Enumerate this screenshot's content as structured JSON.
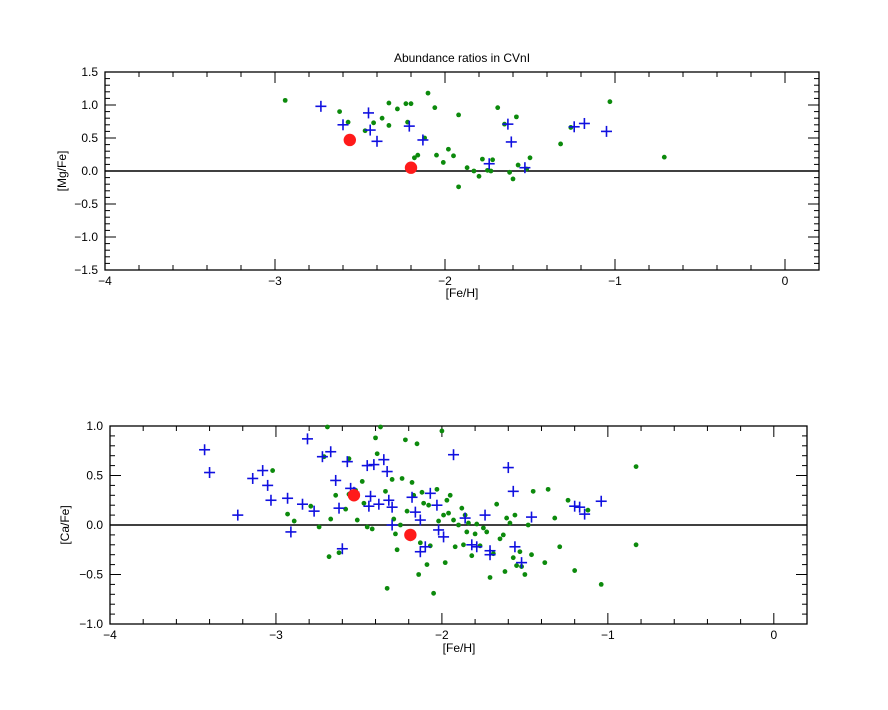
{
  "figure": {
    "title": "Abundance ratios in CVnI"
  },
  "colors": {
    "red": "#ff1a1a",
    "blue": "#1010e0",
    "green": "#0c8a0c",
    "axis": "#000000"
  },
  "chart_data": [
    {
      "type": "scatter",
      "title": "Abundance ratios in CVnI",
      "xlabel": "[Fe/H]",
      "ylabel": "[Mg/Fe]",
      "xlim": [
        -4,
        0.2
      ],
      "ylim": [
        -1.5,
        1.5
      ],
      "xticks": [
        -4,
        -3,
        -2,
        -1,
        0
      ],
      "xtick_labels": [
        "−4",
        "−3",
        "−2",
        "−1",
        "0"
      ],
      "yticks": [
        -1.5,
        -1.0,
        -0.5,
        0.0,
        0.5,
        1.0,
        1.5
      ],
      "ytick_labels": [
        "−1.5",
        "−1.0",
        "−0.5",
        "0.0",
        "0.5",
        "1.0",
        "1.5"
      ],
      "reference_line_y": 0,
      "grid": false,
      "series": [
        {
          "marker": "dot",
          "color": "green",
          "points": [
            [
              -2.94,
              1.07
            ],
            [
              -2.62,
              0.9
            ],
            [
              -2.57,
              0.74
            ],
            [
              -2.47,
              0.61
            ],
            [
              -2.42,
              0.73
            ],
            [
              -2.37,
              0.8
            ],
            [
              -2.33,
              1.03
            ],
            [
              -2.33,
              0.69
            ],
            [
              -2.28,
              0.94
            ],
            [
              -2.23,
              1.02
            ],
            [
              -2.2,
              1.02
            ],
            [
              -2.22,
              0.74
            ],
            [
              -2.18,
              0.2
            ],
            [
              -2.16,
              0.24
            ],
            [
              -2.12,
              0.5
            ],
            [
              -2.1,
              1.18
            ],
            [
              -2.06,
              0.96
            ],
            [
              -2.05,
              0.24
            ],
            [
              -2.01,
              0.13
            ],
            [
              -1.98,
              0.33
            ],
            [
              -1.95,
              0.23
            ],
            [
              -1.92,
              0.85
            ],
            [
              -1.92,
              -0.24
            ],
            [
              -1.87,
              0.05
            ],
            [
              -1.83,
              0.0
            ],
            [
              -1.8,
              -0.08
            ],
            [
              -1.78,
              0.18
            ],
            [
              -1.75,
              0.01
            ],
            [
              -1.73,
              0.0
            ],
            [
              -1.72,
              0.17
            ],
            [
              -1.69,
              0.96
            ],
            [
              -1.65,
              0.71
            ],
            [
              -1.62,
              -0.02
            ],
            [
              -1.6,
              -0.12
            ],
            [
              -1.58,
              0.82
            ],
            [
              -1.57,
              0.09
            ],
            [
              -1.52,
              0.03
            ],
            [
              -1.5,
              0.2
            ],
            [
              -1.32,
              0.41
            ],
            [
              -1.26,
              0.66
            ],
            [
              -1.03,
              1.05
            ],
            [
              -0.71,
              0.21
            ]
          ]
        },
        {
          "marker": "plus",
          "color": "blue",
          "points": [
            [
              -2.73,
              0.98
            ],
            [
              -2.6,
              0.7
            ],
            [
              -2.45,
              0.88
            ],
            [
              -2.44,
              0.62
            ],
            [
              -2.4,
              0.45
            ],
            [
              -2.21,
              0.68
            ],
            [
              -2.13,
              0.47
            ],
            [
              -1.74,
              0.11
            ],
            [
              -1.63,
              0.71
            ],
            [
              -1.61,
              0.44
            ],
            [
              -1.53,
              0.05
            ],
            [
              -1.24,
              0.67
            ],
            [
              -1.18,
              0.72
            ],
            [
              -1.05,
              0.6
            ]
          ]
        },
        {
          "marker": "circle",
          "color": "red",
          "points": [
            [
              -2.56,
              0.47
            ],
            [
              -2.2,
              0.05
            ]
          ]
        }
      ]
    },
    {
      "type": "scatter",
      "title": "",
      "xlabel": "[Fe/H]",
      "ylabel": "[Ca/Fe]",
      "xlim": [
        -4,
        0.2
      ],
      "ylim": [
        -1.0,
        1.0
      ],
      "xticks": [
        -4,
        -3,
        -2,
        -1,
        0
      ],
      "xtick_labels": [
        "−4",
        "−3",
        "−2",
        "−1",
        "0"
      ],
      "yticks": [
        -1.0,
        -0.5,
        0.0,
        0.5,
        1.0
      ],
      "ytick_labels": [
        "−1.0",
        "−0.5",
        "0.0",
        "0.5",
        "1.0"
      ],
      "reference_line_y": 0,
      "grid": false,
      "series": [
        {
          "marker": "dot",
          "color": "green",
          "points": [
            [
              -3.02,
              0.55
            ],
            [
              -2.93,
              0.11
            ],
            [
              -2.89,
              0.04
            ],
            [
              -2.79,
              0.19
            ],
            [
              -2.74,
              -0.02
            ],
            [
              -2.71,
              0.69
            ],
            [
              -2.69,
              0.99
            ],
            [
              -2.68,
              -0.32
            ],
            [
              -2.67,
              0.06
            ],
            [
              -2.64,
              0.3
            ],
            [
              -2.62,
              -0.28
            ],
            [
              -2.58,
              0.16
            ],
            [
              -2.56,
              0.67
            ],
            [
              -2.56,
              0.31
            ],
            [
              -2.52,
              0.35
            ],
            [
              -2.51,
              0.05
            ],
            [
              -2.48,
              0.44
            ],
            [
              -2.47,
              0.22
            ],
            [
              -2.45,
              -0.02
            ],
            [
              -2.42,
              -0.04
            ],
            [
              -2.4,
              0.88
            ],
            [
              -2.39,
              0.72
            ],
            [
              -2.37,
              0.99
            ],
            [
              -2.34,
              0.34
            ],
            [
              -2.33,
              -0.64
            ],
            [
              -2.3,
              0.46
            ],
            [
              -2.29,
              0.06
            ],
            [
              -2.28,
              -0.09
            ],
            [
              -2.27,
              -0.25
            ],
            [
              -2.25,
              0.0
            ],
            [
              -2.24,
              0.47
            ],
            [
              -2.22,
              0.86
            ],
            [
              -2.21,
              0.14
            ],
            [
              -2.19,
              -0.14
            ],
            [
              -2.18,
              0.43
            ],
            [
              -2.17,
              0.3
            ],
            [
              -2.15,
              0.82
            ],
            [
              -2.14,
              -0.5
            ],
            [
              -2.13,
              -0.18
            ],
            [
              -2.12,
              0.33
            ],
            [
              -2.11,
              0.22
            ],
            [
              -2.09,
              -0.4
            ],
            [
              -2.08,
              0.2
            ],
            [
              -2.07,
              -0.21
            ],
            [
              -2.05,
              -0.69
            ],
            [
              -2.03,
              0.36
            ],
            [
              -2.02,
              0.04
            ],
            [
              -2.0,
              0.95
            ],
            [
              -1.99,
              0.1
            ],
            [
              -1.98,
              -0.38
            ],
            [
              -1.97,
              0.25
            ],
            [
              -1.96,
              0.12
            ],
            [
              -1.95,
              0.3
            ],
            [
              -1.93,
              0.05
            ],
            [
              -1.92,
              -0.22
            ],
            [
              -1.9,
              0.0
            ],
            [
              -1.88,
              0.17
            ],
            [
              -1.87,
              -0.2
            ],
            [
              -1.86,
              0.1
            ],
            [
              -1.85,
              -0.07
            ],
            [
              -1.84,
              0.02
            ],
            [
              -1.82,
              -0.31
            ],
            [
              -1.8,
              -0.09
            ],
            [
              -1.79,
              0.01
            ],
            [
              -1.77,
              -0.21
            ],
            [
              -1.75,
              -0.03
            ],
            [
              -1.73,
              -0.07
            ],
            [
              -1.71,
              -0.53
            ],
            [
              -1.69,
              -0.29
            ],
            [
              -1.67,
              0.21
            ],
            [
              -1.65,
              -0.14
            ],
            [
              -1.63,
              -0.1
            ],
            [
              -1.62,
              -0.47
            ],
            [
              -1.61,
              0.07
            ],
            [
              -1.59,
              0.02
            ],
            [
              -1.57,
              -0.33
            ],
            [
              -1.56,
              0.1
            ],
            [
              -1.55,
              -0.41
            ],
            [
              -1.53,
              -0.27
            ],
            [
              -1.52,
              -0.42
            ],
            [
              -1.5,
              -0.5
            ],
            [
              -1.48,
              0.0
            ],
            [
              -1.46,
              -0.3
            ],
            [
              -1.45,
              0.34
            ],
            [
              -1.38,
              -0.38
            ],
            [
              -1.36,
              0.36
            ],
            [
              -1.32,
              0.07
            ],
            [
              -1.29,
              -0.22
            ],
            [
              -1.24,
              0.25
            ],
            [
              -1.2,
              -0.46
            ],
            [
              -1.12,
              0.15
            ],
            [
              -1.04,
              -0.6
            ],
            [
              -0.83,
              0.59
            ],
            [
              -0.83,
              -0.2
            ]
          ]
        },
        {
          "marker": "plus",
          "color": "blue",
          "points": [
            [
              -3.43,
              0.76
            ],
            [
              -3.4,
              0.53
            ],
            [
              -3.23,
              0.1
            ],
            [
              -3.14,
              0.47
            ],
            [
              -3.08,
              0.55
            ],
            [
              -3.05,
              0.4
            ],
            [
              -3.03,
              0.25
            ],
            [
              -2.93,
              0.27
            ],
            [
              -2.91,
              -0.07
            ],
            [
              -2.84,
              0.21
            ],
            [
              -2.81,
              0.87
            ],
            [
              -2.77,
              0.14
            ],
            [
              -2.72,
              0.69
            ],
            [
              -2.67,
              0.74
            ],
            [
              -2.64,
              0.45
            ],
            [
              -2.62,
              0.17
            ],
            [
              -2.6,
              -0.24
            ],
            [
              -2.57,
              0.64
            ],
            [
              -2.55,
              0.37
            ],
            [
              -2.53,
              0.33
            ],
            [
              -2.45,
              0.6
            ],
            [
              -2.44,
              0.19
            ],
            [
              -2.43,
              0.29
            ],
            [
              -2.41,
              0.61
            ],
            [
              -2.38,
              0.21
            ],
            [
              -2.35,
              0.66
            ],
            [
              -2.33,
              0.54
            ],
            [
              -2.32,
              0.25
            ],
            [
              -2.3,
              0.0
            ],
            [
              -2.3,
              0.18
            ],
            [
              -2.18,
              0.28
            ],
            [
              -2.16,
              0.13
            ],
            [
              -2.13,
              0.05
            ],
            [
              -2.13,
              -0.27
            ],
            [
              -2.1,
              -0.22
            ],
            [
              -2.07,
              0.32
            ],
            [
              -2.03,
              0.2
            ],
            [
              -2.02,
              -0.05
            ],
            [
              -1.99,
              -0.12
            ],
            [
              -1.93,
              0.71
            ],
            [
              -1.86,
              0.07
            ],
            [
              -1.82,
              -0.2
            ],
            [
              -1.79,
              -0.22
            ],
            [
              -1.74,
              0.1
            ],
            [
              -1.71,
              -0.26
            ],
            [
              -1.71,
              -0.3
            ],
            [
              -1.6,
              0.58
            ],
            [
              -1.57,
              0.34
            ],
            [
              -1.56,
              -0.22
            ],
            [
              -1.52,
              -0.38
            ],
            [
              -1.46,
              0.08
            ],
            [
              -1.2,
              0.19
            ],
            [
              -1.17,
              0.18
            ],
            [
              -1.14,
              0.11
            ],
            [
              -1.04,
              0.24
            ]
          ]
        },
        {
          "marker": "circle",
          "color": "red",
          "points": [
            [
              -2.53,
              0.3
            ],
            [
              -2.19,
              -0.1
            ]
          ]
        }
      ]
    }
  ]
}
